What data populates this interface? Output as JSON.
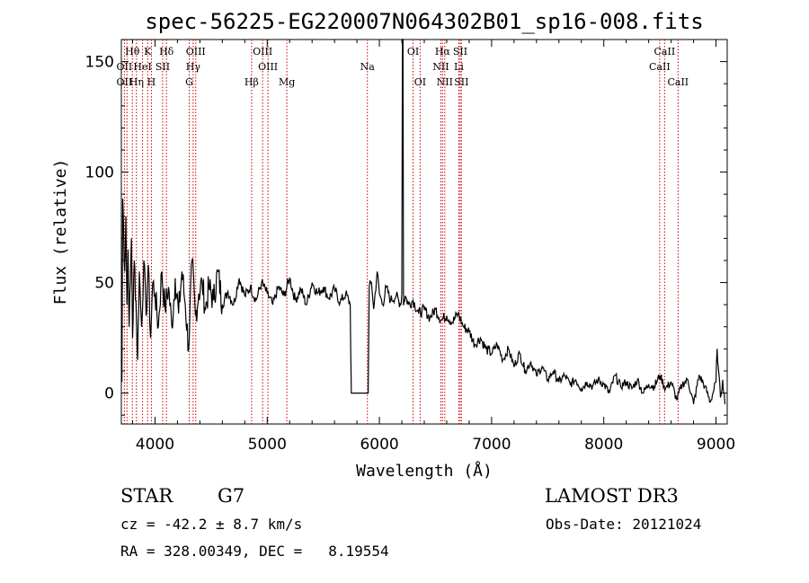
{
  "chart_data": {
    "type": "line",
    "title": "spec-56225-EG220007N064302B01_sp16-008.fits",
    "xlabel": "Wavelength (Å)",
    "ylabel": "Flux (relative)",
    "xlim": [
      3700,
      9100
    ],
    "ylim": [
      -14,
      160
    ],
    "xticks": [
      4000,
      5000,
      6000,
      7000,
      8000,
      9000
    ],
    "yticks": [
      0,
      50,
      100,
      150
    ],
    "series": [
      {
        "name": "flux",
        "x": [
          3700,
          3705,
          3712,
          3720,
          3730,
          3740,
          3750,
          3760,
          3770,
          3780,
          3790,
          3800,
          3815,
          3830,
          3845,
          3860,
          3880,
          3900,
          3920,
          3940,
          3960,
          3980,
          4000,
          4030,
          4060,
          4090,
          4120,
          4150,
          4180,
          4210,
          4240,
          4270,
          4300,
          4330,
          4360,
          4390,
          4420,
          4450,
          4480,
          4520,
          4560,
          4600,
          4650,
          4700,
          4750,
          4800,
          4850,
          4900,
          4950,
          5000,
          5050,
          5100,
          5150,
          5200,
          5250,
          5300,
          5350,
          5400,
          5450,
          5500,
          5550,
          5600,
          5650,
          5700,
          5740,
          5750,
          5760,
          5900,
          5910,
          5930,
          5950,
          5980,
          6000,
          6030,
          6060,
          6100,
          6150,
          6190,
          6200,
          6205,
          6210,
          6215,
          6220,
          6230,
          6260,
          6300,
          6350,
          6400,
          6450,
          6500,
          6550,
          6600,
          6650,
          6700,
          6750,
          6800,
          6850,
          6900,
          6950,
          7000,
          7050,
          7100,
          7150,
          7200,
          7250,
          7300,
          7350,
          7400,
          7450,
          7500,
          7550,
          7600,
          7650,
          7700,
          7750,
          7800,
          7850,
          7900,
          7950,
          8000,
          8050,
          8100,
          8150,
          8200,
          8250,
          8300,
          8350,
          8400,
          8450,
          8500,
          8550,
          8600,
          8650,
          8700,
          8750,
          8800,
          8850,
          8900,
          8950,
          9000,
          9010,
          9020,
          9040,
          9060,
          9080
        ],
        "y": [
          15,
          5,
          88,
          75,
          55,
          80,
          40,
          65,
          30,
          50,
          70,
          25,
          60,
          42,
          15,
          55,
          30,
          60,
          35,
          58,
          25,
          50,
          45,
          30,
          55,
          38,
          48,
          30,
          52,
          36,
          55,
          40,
          20,
          60,
          35,
          45,
          50,
          38,
          48,
          42,
          55,
          40,
          46,
          40,
          52,
          44,
          48,
          42,
          50,
          45,
          40,
          48,
          44,
          52,
          42,
          47,
          40,
          50,
          45,
          48,
          43,
          47,
          41,
          45,
          40,
          0,
          0,
          0,
          48,
          50,
          38,
          55,
          45,
          40,
          48,
          42,
          44,
          40,
          45,
          160,
          160,
          40,
          42,
          44,
          40,
          42,
          36,
          38,
          34,
          38,
          33,
          35,
          32,
          36,
          30,
          28,
          22,
          25,
          20,
          18,
          22,
          15,
          20,
          12,
          18,
          10,
          14,
          8,
          12,
          6,
          10,
          5,
          8,
          4,
          6,
          2,
          5,
          3,
          6,
          4,
          0,
          8,
          3,
          5,
          2,
          6,
          0,
          4,
          3,
          8,
          2,
          5,
          -3,
          4,
          6,
          -5,
          8,
          3,
          -4,
          5,
          20,
          12,
          -2,
          6,
          -5
        ]
      }
    ],
    "line_labels": [
      {
        "text": "Hθ",
        "lambda": 3798,
        "row": 0
      },
      {
        "text": "K",
        "lambda": 3934,
        "row": 0
      },
      {
        "text": "Hδ",
        "lambda": 4102,
        "row": 0
      },
      {
        "text": "OIII",
        "lambda": 4363,
        "row": 0
      },
      {
        "text": "OIII",
        "lambda": 4959,
        "row": 0
      },
      {
        "text": "OI",
        "lambda": 6300,
        "row": 0
      },
      {
        "text": "Hα",
        "lambda": 6563,
        "row": 0
      },
      {
        "text": "SII",
        "lambda": 6720,
        "row": 0
      },
      {
        "text": "CaII",
        "lambda": 8542,
        "row": 0
      },
      {
        "text": "OII",
        "lambda": 3727,
        "row": 1
      },
      {
        "text": "HeI",
        "lambda": 3889,
        "row": 1
      },
      {
        "text": "SII",
        "lambda": 4068,
        "row": 1
      },
      {
        "text": "Hγ",
        "lambda": 4340,
        "row": 1
      },
      {
        "text": "OIII",
        "lambda": 5007,
        "row": 1
      },
      {
        "text": "Na",
        "lambda": 5893,
        "row": 1
      },
      {
        "text": "NII",
        "lambda": 6548,
        "row": 1
      },
      {
        "text": "Li",
        "lambda": 6708,
        "row": 1
      },
      {
        "text": "CaII",
        "lambda": 8498,
        "row": 1
      },
      {
        "text": "OII",
        "lambda": 3727,
        "row": 2
      },
      {
        "text": "Hη",
        "lambda": 3835,
        "row": 2
      },
      {
        "text": "H",
        "lambda": 3968,
        "row": 2
      },
      {
        "text": "G",
        "lambda": 4305,
        "row": 2
      },
      {
        "text": "Hβ",
        "lambda": 4861,
        "row": 2
      },
      {
        "text": "Mg",
        "lambda": 5175,
        "row": 2
      },
      {
        "text": "OI",
        "lambda": 6363,
        "row": 2
      },
      {
        "text": "NII",
        "lambda": 6583,
        "row": 2
      },
      {
        "text": "SII",
        "lambda": 6731,
        "row": 2
      },
      {
        "text": "CaII",
        "lambda": 8662,
        "row": 2
      }
    ],
    "line_markers": [
      3727,
      3750,
      3798,
      3835,
      3889,
      3934,
      3968,
      4068,
      4102,
      4305,
      4340,
      4363,
      4861,
      4959,
      5007,
      5175,
      5893,
      6300,
      6363,
      6548,
      6563,
      6583,
      6708,
      6720,
      6731,
      8498,
      8542,
      8662
    ],
    "marker_color": "#cc0000"
  },
  "footer": {
    "object_class": "STAR",
    "subclass": "G7",
    "survey": "LAMOST DR3",
    "redshift": "cz = -42.2 ± 8.7 km/s",
    "obs_date": "Obs-Date: 20121024",
    "coords": "RA = 328.00349, DEC =   8.19554"
  }
}
